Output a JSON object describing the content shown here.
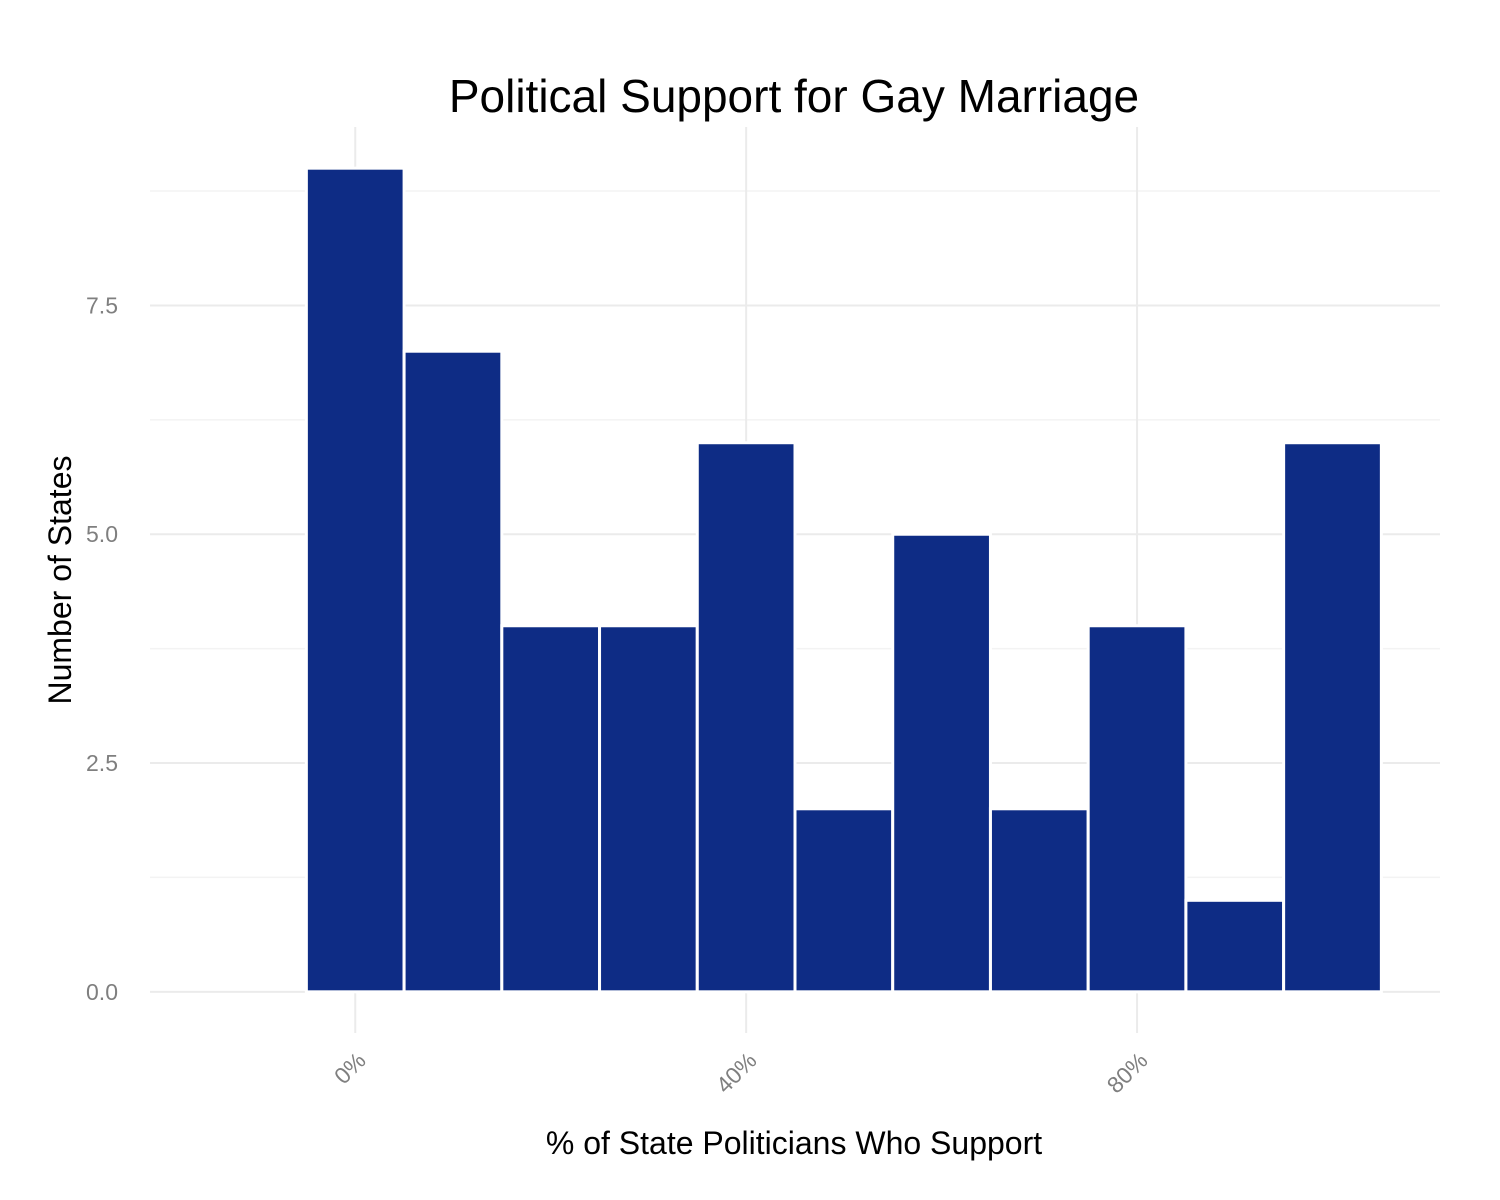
{
  "chart_data": {
    "type": "bar",
    "title": "Political Support for Gay Marriage",
    "xlabel": "% of State Politicians Who Support",
    "ylabel": "Number of States",
    "bar_color": "#0e2c85",
    "bin_width": 10,
    "bins": [
      {
        "x_start": -5,
        "x_end": 5,
        "count": 9
      },
      {
        "x_start": 5,
        "x_end": 15,
        "count": 7
      },
      {
        "x_start": 15,
        "x_end": 25,
        "count": 4
      },
      {
        "x_start": 25,
        "x_end": 35,
        "count": 4
      },
      {
        "x_start": 35,
        "x_end": 45,
        "count": 6
      },
      {
        "x_start": 45,
        "x_end": 55,
        "count": 2
      },
      {
        "x_start": 55,
        "x_end": 65,
        "count": 5
      },
      {
        "x_start": 65,
        "x_end": 75,
        "count": 2
      },
      {
        "x_start": 75,
        "x_end": 85,
        "count": 4
      },
      {
        "x_start": 85,
        "x_end": 95,
        "count": 1
      },
      {
        "x_start": 95,
        "x_end": 105,
        "count": 6
      }
    ],
    "x_ticks": [
      {
        "value": 0,
        "label": "0%"
      },
      {
        "value": 40,
        "label": "40%"
      },
      {
        "value": 80,
        "label": "80%"
      }
    ],
    "y_ticks": [
      {
        "value": 0,
        "label": "0.0"
      },
      {
        "value": 2.5,
        "label": "2.5"
      },
      {
        "value": 5,
        "label": "5.0"
      },
      {
        "value": 7.5,
        "label": "7.5"
      }
    ],
    "xlim": [
      -21,
      111
    ],
    "ylim": [
      -0.45,
      9.45
    ],
    "grid": true,
    "legend": "none"
  }
}
